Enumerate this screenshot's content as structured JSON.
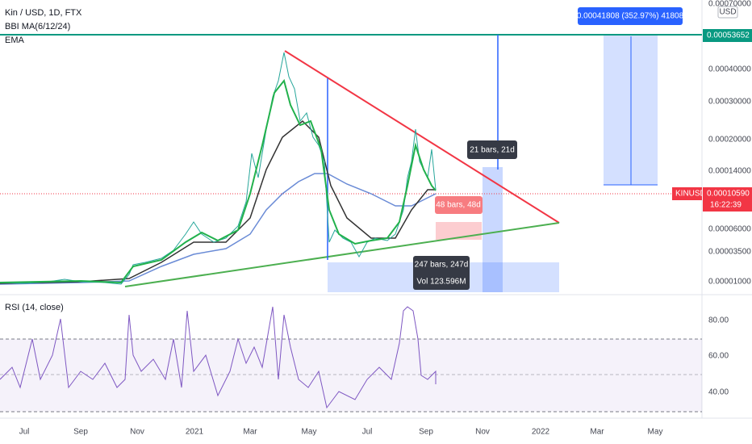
{
  "header": {
    "symbol": "Kin / USD, 1D, FTX",
    "indicators": [
      "BBI MA(6/12/24)",
      "EMA"
    ]
  },
  "price_axis": {
    "currency": "USD",
    "labels": [
      "0.00070000",
      "0.00040000",
      "0.00030000",
      "0.00020000",
      "0.00014000",
      "0.00006000",
      "0.00003500",
      "0.00001000"
    ],
    "level_badge": "0.00053652",
    "last_price": {
      "ticker": "KINUSD",
      "price": "0.00010590",
      "countdown": "16:22:39"
    }
  },
  "annotations": {
    "target": "0.00041808 (352.97%) 41808",
    "range_short": "21 bars, 21d",
    "range_mid": "48 bars, 48d",
    "range_long": "247 bars, 247d",
    "volume": "Vol 123.596M"
  },
  "rsi": {
    "title": "RSI (14, close)",
    "labels": [
      "80.00",
      "60.00",
      "40.00"
    ]
  },
  "time_axis": {
    "labels": [
      "Jul",
      "Sep",
      "Nov",
      "2021",
      "Mar",
      "May",
      "Jul",
      "Sep",
      "Nov",
      "2022",
      "Mar",
      "May"
    ]
  }
}
